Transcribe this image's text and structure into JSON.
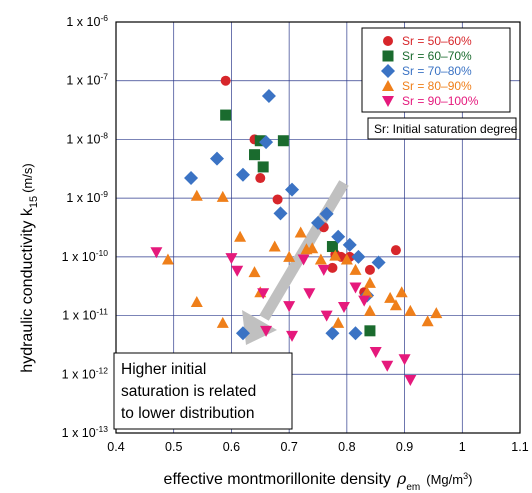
{
  "chart_data": {
    "type": "scatter",
    "xlabel": "effective montmorillonite density",
    "xlabel_symbol": "ρ",
    "xlabel_symbol_sub": "em",
    "xlabel_unit": "(Mg/m",
    "xlabel_unit_sup": "3",
    "xlabel_unit_close": ")",
    "ylabel": "hydraulic conductivity k",
    "ylabel_sub": "15",
    "ylabel_unit": "(m/s)",
    "xlim": [
      0.4,
      1.1
    ],
    "ylim_log10": [
      -13,
      -6
    ],
    "y_scale": "log",
    "grid": true,
    "x_ticks": [
      "0.4",
      "0.5",
      "0.6",
      "0.7",
      "0.8",
      "0.9",
      "1",
      "1.1"
    ],
    "y_ticks": [
      {
        "base": "1 x 10",
        "exp": "-6"
      },
      {
        "base": "1 x 10",
        "exp": "-7"
      },
      {
        "base": "1 x 10",
        "exp": "-8"
      },
      {
        "base": "1 x 10",
        "exp": "-9"
      },
      {
        "base": "1 x 10",
        "exp": "-10"
      },
      {
        "base": "1 x 10",
        "exp": "-11"
      },
      {
        "base": "1 x 10",
        "exp": "-12"
      },
      {
        "base": "1 x 10",
        "exp": "-13"
      }
    ],
    "legend_position": "top-right",
    "note": "Sr: Initial saturation degree",
    "annotation": [
      "Higher initial",
      "saturation is related",
      "to lower distribution"
    ],
    "series": [
      {
        "name": "Sr = 50–60%",
        "marker": "circle",
        "color": "#d7262b",
        "points": [
          [
            0.59,
            1e-07
          ],
          [
            0.64,
            1e-08
          ],
          [
            0.65,
            2.2e-09
          ],
          [
            0.68,
            9.5e-10
          ],
          [
            0.76,
            3.2e-10
          ],
          [
            0.78,
            1.1e-10
          ],
          [
            0.79,
            1e-10
          ],
          [
            0.805,
            1e-10
          ],
          [
            0.84,
            6e-11
          ],
          [
            0.885,
            1.3e-10
          ],
          [
            0.775,
            6.5e-11
          ],
          [
            0.83,
            2.5e-11
          ]
        ]
      },
      {
        "name": "Sr = 60–70%",
        "marker": "square",
        "color": "#1a6b2e",
        "points": [
          [
            0.59,
            2.6e-08
          ],
          [
            0.64,
            5.5e-09
          ],
          [
            0.65,
            9.5e-09
          ],
          [
            0.655,
            3.4e-09
          ],
          [
            0.69,
            9.5e-09
          ],
          [
            0.775,
            1.5e-10
          ],
          [
            0.84,
            5.5e-12
          ]
        ]
      },
      {
        "name": "Sr = 70–80%",
        "marker": "diamond",
        "color": "#3b73c4",
        "points": [
          [
            0.53,
            2.2e-09
          ],
          [
            0.575,
            4.7e-09
          ],
          [
            0.62,
            2.5e-09
          ],
          [
            0.66,
            9e-09
          ],
          [
            0.665,
            5.5e-08
          ],
          [
            0.685,
            5.5e-10
          ],
          [
            0.705,
            1.4e-09
          ],
          [
            0.75,
            3.8e-10
          ],
          [
            0.765,
            5.4e-10
          ],
          [
            0.785,
            2.2e-10
          ],
          [
            0.805,
            1.6e-10
          ],
          [
            0.82,
            1e-10
          ],
          [
            0.855,
            8e-11
          ],
          [
            0.775,
            5e-12
          ],
          [
            0.815,
            5e-12
          ],
          [
            0.835,
            2.2e-11
          ],
          [
            0.62,
            5e-12
          ]
        ]
      },
      {
        "name": "Sr = 80–90%",
        "marker": "triangle-up",
        "color": "#ef7f1a",
        "points": [
          [
            0.49,
            9e-11
          ],
          [
            0.54,
            1.1e-09
          ],
          [
            0.54,
            1.7e-11
          ],
          [
            0.585,
            1.05e-09
          ],
          [
            0.585,
            7.5e-12
          ],
          [
            0.615,
            2.2e-10
          ],
          [
            0.64,
            5.5e-11
          ],
          [
            0.65,
            2.5e-11
          ],
          [
            0.675,
            1.5e-10
          ],
          [
            0.7,
            1e-10
          ],
          [
            0.72,
            2.6e-10
          ],
          [
            0.73,
            1.35e-10
          ],
          [
            0.74,
            1.4e-10
          ],
          [
            0.755,
            9e-11
          ],
          [
            0.78,
            1.05e-10
          ],
          [
            0.8,
            9e-11
          ],
          [
            0.815,
            6e-11
          ],
          [
            0.835,
            2.5e-11
          ],
          [
            0.84,
            3.6e-11
          ],
          [
            0.875,
            2e-11
          ],
          [
            0.885,
            1.5e-11
          ],
          [
            0.895,
            2.5e-11
          ],
          [
            0.91,
            1.2e-11
          ],
          [
            0.94,
            8e-12
          ],
          [
            0.955,
            1.1e-11
          ],
          [
            0.84,
            1.2e-11
          ],
          [
            0.785,
            7.5e-12
          ]
        ]
      },
      {
        "name": "Sr = 90–100%",
        "marker": "triangle-down",
        "color": "#e5197c",
        "points": [
          [
            0.47,
            1.2e-10
          ],
          [
            0.6,
            9.5e-11
          ],
          [
            0.61,
            5.8e-11
          ],
          [
            0.655,
            2.4e-11
          ],
          [
            0.66,
            5.5e-12
          ],
          [
            0.7,
            1.45e-11
          ],
          [
            0.705,
            4.5e-12
          ],
          [
            0.725,
            9e-11
          ],
          [
            0.76,
            6e-11
          ],
          [
            0.765,
            1e-11
          ],
          [
            0.795,
            1.4e-11
          ],
          [
            0.815,
            3e-11
          ],
          [
            0.83,
            1.8e-11
          ],
          [
            0.85,
            2.4e-12
          ],
          [
            0.87,
            1.4e-12
          ],
          [
            0.9,
            1.8e-12
          ],
          [
            0.91,
            8e-13
          ],
          [
            0.735,
            2.4e-11
          ]
        ]
      }
    ]
  }
}
